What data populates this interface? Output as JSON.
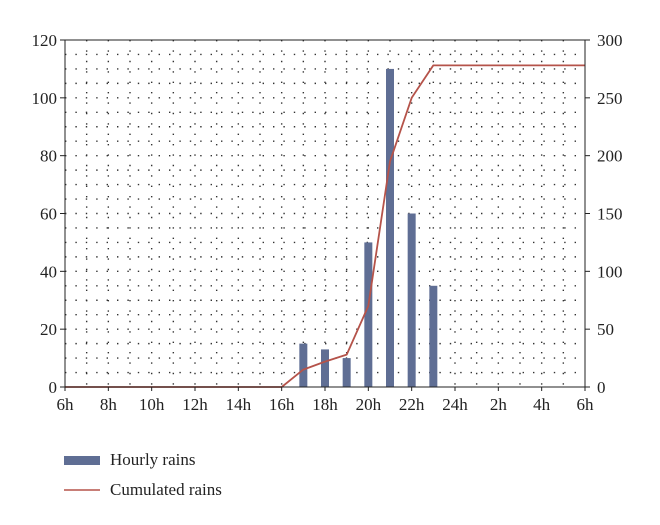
{
  "chart_data": {
    "type": "bar",
    "x_labels": [
      "6h",
      "8h",
      "10h",
      "12h",
      "14h",
      "16h",
      "18h",
      "20h",
      "22h",
      "24h",
      "2h",
      "4h",
      "6h"
    ],
    "hours": [
      "6h",
      "7h",
      "8h",
      "9h",
      "10h",
      "11h",
      "12h",
      "13h",
      "14h",
      "15h",
      "16h",
      "17h",
      "18h",
      "19h",
      "20h",
      "21h",
      "22h",
      "23h",
      "24h",
      "1h",
      "2h",
      "3h",
      "4h",
      "5h",
      "6h"
    ],
    "left_axis": {
      "ylim": [
        0,
        120
      ],
      "ticks": [
        0,
        20,
        40,
        60,
        80,
        100,
        120
      ]
    },
    "right_axis": {
      "ylim": [
        0,
        300
      ],
      "ticks": [
        0,
        50,
        100,
        150,
        200,
        250,
        300
      ]
    },
    "grid": true,
    "legend_position": "bottom-left",
    "series": [
      {
        "name": "Hourly rains",
        "kind": "bar",
        "axis": "left",
        "color": "#5f6e94",
        "bars": [
          {
            "hour": "17h",
            "value": 15
          },
          {
            "hour": "18h",
            "value": 13
          },
          {
            "hour": "19h",
            "value": 10
          },
          {
            "hour": "20h",
            "value": 50
          },
          {
            "hour": "21h",
            "value": 110
          },
          {
            "hour": "22h",
            "value": 60
          },
          {
            "hour": "23h",
            "value": 35
          }
        ]
      },
      {
        "name": "Cumulated rains",
        "kind": "line",
        "axis": "right",
        "color": "#b5534a",
        "points": [
          {
            "hour": "6h",
            "value": 0
          },
          {
            "hour": "16h",
            "value": 0
          },
          {
            "hour": "17h",
            "value": 15
          },
          {
            "hour": "18h",
            "value": 22
          },
          {
            "hour": "19h",
            "value": 28
          },
          {
            "hour": "20h",
            "value": 70
          },
          {
            "hour": "21h",
            "value": 195
          },
          {
            "hour": "22h",
            "value": 250
          },
          {
            "hour": "23h",
            "value": 278
          },
          {
            "hour": "24h",
            "value": 278
          },
          {
            "hour": "6h",
            "value": 278
          }
        ]
      }
    ]
  }
}
